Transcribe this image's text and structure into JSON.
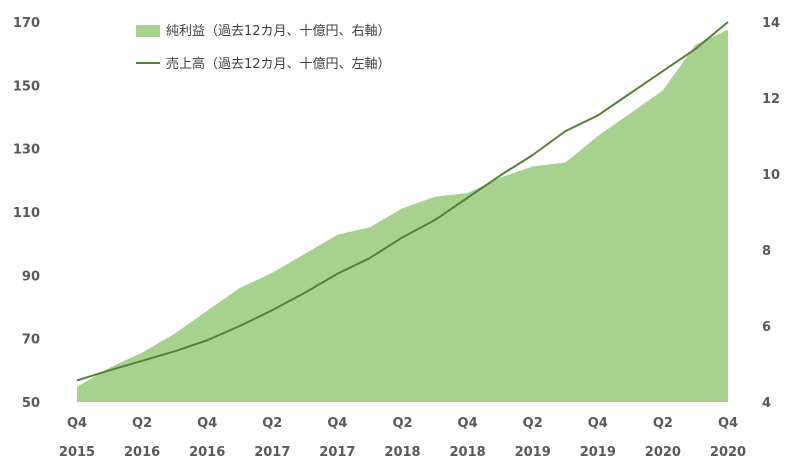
{
  "chart_data": {
    "type": "area+line",
    "categories": [
      {
        "q": "Q4",
        "y": "2015"
      },
      {
        "q": "",
        "y": ""
      },
      {
        "q": "Q2",
        "y": "2016"
      },
      {
        "q": "",
        "y": ""
      },
      {
        "q": "Q4",
        "y": "2016"
      },
      {
        "q": "",
        "y": ""
      },
      {
        "q": "Q2",
        "y": "2017"
      },
      {
        "q": "",
        "y": ""
      },
      {
        "q": "Q4",
        "y": "2017"
      },
      {
        "q": "",
        "y": ""
      },
      {
        "q": "Q2",
        "y": "2018"
      },
      {
        "q": "",
        "y": ""
      },
      {
        "q": "Q4",
        "y": "2018"
      },
      {
        "q": "",
        "y": ""
      },
      {
        "q": "Q2",
        "y": "2019"
      },
      {
        "q": "",
        "y": ""
      },
      {
        "q": "Q4",
        "y": "2019"
      },
      {
        "q": "",
        "y": ""
      },
      {
        "q": "Q2",
        "y": "2020"
      },
      {
        "q": "",
        "y": ""
      },
      {
        "q": "Q4",
        "y": "2020"
      }
    ],
    "series": [
      {
        "name": "純利益（過去12カ月、十億円、右軸）",
        "type": "area",
        "axis": "right",
        "color": "#a9d18e",
        "values": [
          4.4,
          4.9,
          5.3,
          5.8,
          6.4,
          7.0,
          7.4,
          7.9,
          8.4,
          8.6,
          9.1,
          9.4,
          9.5,
          9.9,
          10.2,
          10.3,
          11.0,
          11.6,
          12.2,
          13.4,
          13.8
        ]
      },
      {
        "name": "売上高（過去12カ月、十億円、左軸）",
        "type": "line",
        "axis": "left",
        "color": "#548235",
        "values": [
          56.8,
          60.0,
          63.0,
          66.0,
          69.5,
          74.0,
          79.0,
          84.5,
          90.5,
          95.5,
          102.0,
          107.5,
          114.5,
          121.5,
          128.0,
          135.5,
          140.5,
          147.5,
          154.5,
          161.5,
          170.0
        ]
      }
    ],
    "y_left": {
      "ticks": [
        "170",
        "150",
        "130",
        "110",
        "90",
        "70",
        "50"
      ],
      "ylim": [
        50,
        170
      ]
    },
    "y_right": {
      "ticks": [
        "14",
        "12",
        "10",
        "8",
        "6",
        "4"
      ],
      "ylim": [
        4,
        14
      ]
    },
    "legend_position": "top-left",
    "grid": false
  }
}
